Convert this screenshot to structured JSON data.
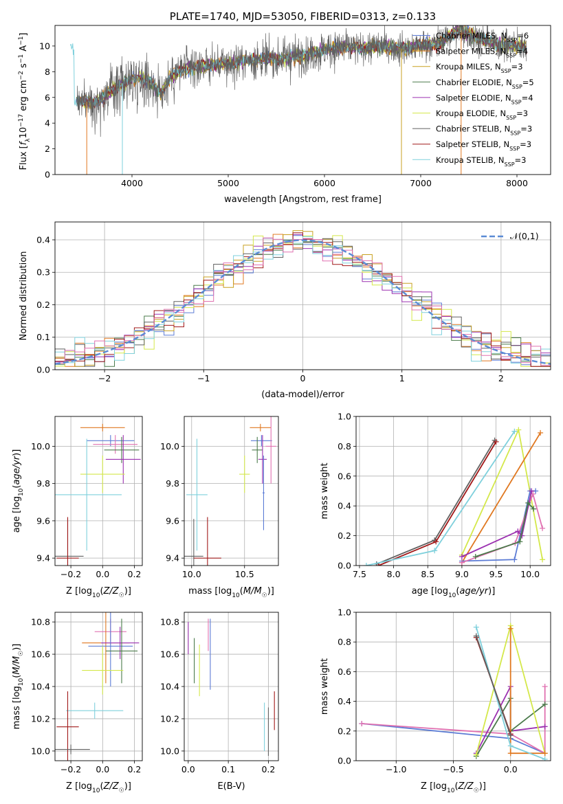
{
  "colors": {
    "Chabrier MILES": "#5b7bd5",
    "Salpeter MILES": "#e07820",
    "Kroupa MILES": "#c8a020",
    "Chabrier ELODIE": "#4a7a4a",
    "Salpeter ELODIE": "#9b30b0",
    "Kroupa ELODIE": "#d4e84a",
    "Chabrier STELIB": "#606060",
    "Salpeter STELIB": "#a01818",
    "Kroupa STELIB": "#7ed0dc",
    "pink": "#e070b0",
    "normal_curve": "#5b8bd5",
    "grid": "#b0b0b0"
  },
  "chart_data": [
    {
      "type": "line",
      "title": "PLATE=1740, MJD=53050, FIBERID=0313, z=0.133",
      "xlabel": "wavelength [Angstrom, rest frame]",
      "ylabel": "Flux [f_λ 10^-17 erg cm^-2 s^-1 A^-1]",
      "xlim": [
        3200,
        8350
      ],
      "ylim": [
        0,
        11.6
      ],
      "xticks": [
        4000,
        5000,
        6000,
        7000,
        8000
      ],
      "yticks": [
        0,
        2,
        4,
        6,
        8,
        10
      ],
      "grid": false,
      "legend_position": "top-right",
      "legend": [
        {
          "model": "Chabrier MILES",
          "nssp": "6"
        },
        {
          "model": "Salpeter MILES",
          "nssp": "4"
        },
        {
          "model": "Kroupa MILES",
          "nssp": "3"
        },
        {
          "model": "Chabrier ELODIE",
          "nssp": "5"
        },
        {
          "model": "Salpeter ELODIE",
          "nssp": "4"
        },
        {
          "model": "Kroupa ELODIE",
          "nssp": "3"
        },
        {
          "model": "Chabrier STELIB",
          "nssp": "3"
        },
        {
          "model": "Salpeter STELIB",
          "nssp": "3"
        },
        {
          "model": "Kroupa STELIB",
          "nssp": "3"
        }
      ],
      "continuum": {
        "x": [
          3400,
          3600,
          3700,
          3800,
          3900,
          4000,
          4100,
          4200,
          4300,
          4400,
          4500,
          4600,
          4800,
          5000,
          5200,
          5500,
          5800,
          6000,
          6200,
          6400,
          6600,
          6800,
          7000,
          7200,
          7400,
          7600,
          7800,
          8000,
          8100
        ],
        "y": [
          5.8,
          5.6,
          6.0,
          6.6,
          7.1,
          7.4,
          7.6,
          7.2,
          6.3,
          7.6,
          8.1,
          8.3,
          8.5,
          8.6,
          8.9,
          9.0,
          9.3,
          9.7,
          9.9,
          9.8,
          10.0,
          9.8,
          10.0,
          10.2,
          11.3,
          10.6,
          10.1,
          10.0,
          9.9
        ]
      }
    },
    {
      "type": "histogram",
      "xlabel": "(data-model)/error",
      "ylabel": "Normed distribution",
      "xlim": [
        -2.5,
        2.5
      ],
      "ylim": [
        0,
        0.455
      ],
      "xticks": [
        -2,
        -1,
        0,
        1,
        2
      ],
      "yticks": [
        0.0,
        0.1,
        0.2,
        0.3,
        0.4
      ],
      "grid": true,
      "legend": [
        "𝒩(0,1)"
      ],
      "legend_position": "top-right",
      "bin_width": 0.1,
      "series_note": "nine step-histograms, one per model, scattered around a unit normal"
    },
    {
      "type": "errorbar",
      "xlabel": "Z [log10(Z/Z☉)]",
      "ylabel": "age [log10(age/yr)]",
      "xlim": [
        -0.3,
        0.25
      ],
      "ylim": [
        9.36,
        10.16
      ],
      "xticks": [
        -0.2,
        0.0,
        0.2
      ],
      "yticks": [
        9.4,
        9.6,
        9.8,
        10.0
      ],
      "points": [
        {
          "model": "Salpeter MILES",
          "x": 0.0,
          "y": 10.1,
          "xerr": 0.14,
          "yerr": 0.02
        },
        {
          "model": "Chabrier MILES",
          "x": 0.05,
          "y": 10.03,
          "xerr": 0.15,
          "yerr": 0.03
        },
        {
          "model": "pink",
          "x": 0.08,
          "y": 10.01,
          "xerr": 0.14,
          "yerr": 0.05
        },
        {
          "model": "Chabrier ELODIE",
          "x": 0.12,
          "y": 9.98,
          "xerr": 0.11,
          "yerr": 0.07
        },
        {
          "model": "Salpeter ELODIE",
          "x": 0.13,
          "y": 9.93,
          "xerr": 0.11,
          "yerr": 0.13
        },
        {
          "model": "Kroupa ELODIE",
          "x": 0.0,
          "y": 9.85,
          "xerr": 0.14,
          "yerr": 0.1
        },
        {
          "model": "Kroupa STELIB",
          "x": -0.1,
          "y": 9.74,
          "xerr": 0.22,
          "yerr": 0.3
        },
        {
          "model": "Chabrier STELIB",
          "x": -0.22,
          "y": 9.41,
          "xerr": 0.1,
          "yerr": 0.2
        },
        {
          "model": "Salpeter STELIB",
          "x": -0.22,
          "y": 9.4,
          "xerr": 0.07,
          "yerr": 0.22
        }
      ]
    },
    {
      "type": "errorbar",
      "xlabel": "mass [log10(M/M☉)]",
      "ylabel": "",
      "xlim": [
        9.93,
        10.82
      ],
      "ylim": [
        9.36,
        10.16
      ],
      "xticks": [
        10.0,
        10.5
      ],
      "yticks": [
        9.4,
        9.6,
        9.8,
        10.0
      ],
      "points": [
        {
          "model": "Salpeter MILES",
          "x": 10.65,
          "y": 10.1,
          "xerr": 0.1,
          "yerr": 0.02
        },
        {
          "model": "Chabrier MILES",
          "x": 10.66,
          "y": 10.03,
          "xerr": 0.1,
          "yerr": 0.03
        },
        {
          "model": "Chabrier ELODIE",
          "x": 10.62,
          "y": 9.98,
          "xerr": 0.05,
          "yerr": 0.07
        },
        {
          "model": "pink",
          "x": 10.75,
          "y": 10.0,
          "xerr": 0.05,
          "yerr": 0.2
        },
        {
          "model": "Salpeter ELODIE",
          "x": 10.67,
          "y": 9.93,
          "xerr": 0.04,
          "yerr": 0.13
        },
        {
          "model": "Kroupa ELODIE",
          "x": 10.5,
          "y": 9.85,
          "xerr": 0.05,
          "yerr": 0.1
        },
        {
          "model": "Chabrier MILES",
          "x": 10.68,
          "y": 9.75,
          "xerr": 0.01,
          "yerr": 0.2
        },
        {
          "model": "Kroupa STELIB",
          "x": 10.05,
          "y": 9.74,
          "xerr": 0.1,
          "yerr": 0.3
        },
        {
          "model": "Chabrier STELIB",
          "x": 10.02,
          "y": 9.41,
          "xerr": 0.09,
          "yerr": 0.2
        },
        {
          "model": "Salpeter STELIB",
          "x": 10.15,
          "y": 9.4,
          "xerr": 0.13,
          "yerr": 0.22
        }
      ]
    },
    {
      "type": "line",
      "xlabel": "age [log10(age/yr)]",
      "ylabel": "mass weight",
      "xlim": [
        7.45,
        10.3
      ],
      "ylim": [
        0,
        1.0
      ],
      "xticks": [
        7.5,
        8.0,
        8.5,
        9.0,
        9.5,
        10.0
      ],
      "yticks": [
        0.0,
        0.2,
        0.4,
        0.6,
        0.8,
        1.0
      ],
      "grid": true,
      "series": [
        {
          "model": "Chabrier STELIB",
          "x": [
            7.75,
            8.6,
            9.48
          ],
          "y": [
            0.01,
            0.17,
            0.84
          ]
        },
        {
          "model": "Salpeter STELIB",
          "x": [
            7.78,
            8.62,
            9.5
          ],
          "y": [
            0.0,
            0.16,
            0.83
          ]
        },
        {
          "model": "Kroupa STELIB",
          "x": [
            7.6,
            8.6,
            9.77
          ],
          "y": [
            0.0,
            0.1,
            0.9
          ]
        },
        {
          "model": "Kroupa ELODIE",
          "x": [
            9.0,
            9.83,
            10.18
          ],
          "y": [
            0.07,
            0.91,
            0.04
          ]
        },
        {
          "model": "Salpeter MILES",
          "x": [
            9.0,
            10.15
          ],
          "y": [
            0.02,
            0.89
          ]
        },
        {
          "model": "Chabrier MILES",
          "x": [
            9.0,
            9.77,
            10.0,
            10.08
          ],
          "y": [
            0.03,
            0.04,
            0.5,
            0.5
          ]
        },
        {
          "model": "pink",
          "x": [
            9.0,
            9.78,
            10.04,
            10.18
          ],
          "y": [
            0.02,
            0.15,
            0.48,
            0.25
          ]
        },
        {
          "model": "Salpeter ELODIE",
          "x": [
            9.0,
            9.82,
            9.88,
            10.02
          ],
          "y": [
            0.06,
            0.23,
            0.2,
            0.5
          ]
        },
        {
          "model": "Chabrier ELODIE",
          "x": [
            9.2,
            9.85,
            9.97,
            10.05
          ],
          "y": [
            0.06,
            0.16,
            0.42,
            0.38
          ]
        }
      ]
    },
    {
      "type": "errorbar",
      "xlabel": "Z [log10(Z/Z☉)]",
      "ylabel": "mass [log10(M/M☉)]",
      "xlim": [
        -0.3,
        0.25
      ],
      "ylim": [
        9.94,
        10.86
      ],
      "xticks": [
        -0.2,
        0.0,
        0.2
      ],
      "yticks": [
        10.0,
        10.2,
        10.4,
        10.6,
        10.8
      ],
      "points": [
        {
          "model": "pink",
          "x": 0.05,
          "y": 10.74,
          "xerr": 0.1,
          "yerr": 0.08
        },
        {
          "model": "Salpeter MILES",
          "x": 0.02,
          "y": 10.67,
          "xerr": 0.15,
          "yerr": 0.25
        },
        {
          "model": "Salpeter ELODIE",
          "x": 0.11,
          "y": 10.67,
          "xerr": 0.12,
          "yerr": 0.1
        },
        {
          "model": "Chabrier MILES",
          "x": 0.05,
          "y": 10.65,
          "xerr": 0.14,
          "yerr": 0.25
        },
        {
          "model": "Chabrier ELODIE",
          "x": 0.12,
          "y": 10.62,
          "xerr": 0.1,
          "yerr": 0.2
        },
        {
          "model": "Kroupa ELODIE",
          "x": 0.0,
          "y": 10.5,
          "xerr": 0.13,
          "yerr": 0.15
        },
        {
          "model": "Kroupa STELIB",
          "x": -0.05,
          "y": 10.25,
          "xerr": 0.18,
          "yerr": 0.05
        },
        {
          "model": "Salpeter STELIB",
          "x": -0.22,
          "y": 10.15,
          "xerr": 0.07,
          "yerr": 0.22
        },
        {
          "model": "Chabrier STELIB",
          "x": -0.2,
          "y": 10.01,
          "xerr": 0.12,
          "yerr": 0.03
        }
      ]
    },
    {
      "type": "errorbar",
      "xlabel": "E(B-V)",
      "ylabel": "",
      "xlim": [
        -0.01,
        0.225
      ],
      "ylim": [
        9.94,
        10.86
      ],
      "xticks": [
        0.0,
        0.1,
        0.2
      ],
      "yticks": [
        10.0,
        10.2,
        10.4,
        10.6,
        10.8
      ],
      "points": [
        {
          "model": "Salpeter ELODIE",
          "x": 0.0,
          "y": 10.7,
          "xerr": 0.0,
          "yerr": 0.1
        },
        {
          "model": "Chabrier ELODIE",
          "x": 0.015,
          "y": 10.56,
          "xerr": 0.0,
          "yerr": 0.14
        },
        {
          "model": "Kroupa ELODIE",
          "x": 0.028,
          "y": 10.5,
          "xerr": 0.0,
          "yerr": 0.16
        },
        {
          "model": "Chabrier MILES",
          "x": 0.055,
          "y": 10.6,
          "xerr": 0.0,
          "yerr": 0.22
        },
        {
          "model": "pink",
          "x": 0.05,
          "y": 10.72,
          "xerr": 0.0,
          "yerr": 0.1
        },
        {
          "model": "Kroupa STELIB",
          "x": 0.19,
          "y": 10.15,
          "xerr": 0.0,
          "yerr": 0.15
        },
        {
          "model": "Chabrier STELIB",
          "x": 0.2,
          "y": 10.12,
          "xerr": 0.0,
          "yerr": 0.15
        },
        {
          "model": "Salpeter STELIB",
          "x": 0.215,
          "y": 10.25,
          "xerr": 0.0,
          "yerr": 0.12
        }
      ]
    },
    {
      "type": "line",
      "xlabel": "Z [log10(Z/Z☉)]",
      "ylabel": "mass weight",
      "xlim": [
        -1.35,
        0.35
      ],
      "ylim": [
        0,
        1.0
      ],
      "xticks": [
        -1.0,
        -0.5,
        0.0
      ],
      "yticks": [
        0.0,
        0.2,
        0.4,
        0.6,
        0.8,
        1.0
      ],
      "grid": true,
      "series": [
        {
          "model": "Chabrier MILES",
          "x": [
            -1.3,
            0.0,
            0.3
          ],
          "y": [
            0.25,
            0.15,
            0.05
          ]
        },
        {
          "model": "pink",
          "x": [
            -1.3,
            0.0,
            0.3,
            0.3
          ],
          "y": [
            0.25,
            0.18,
            0.05,
            0.5
          ]
        },
        {
          "model": "Salpeter ELODIE",
          "x": [
            -0.3,
            0.0,
            0.0,
            0.3
          ],
          "y": [
            0.05,
            0.5,
            0.2,
            0.23
          ]
        },
        {
          "model": "Chabrier ELODIE",
          "x": [
            -0.3,
            0.0,
            0.0,
            0.3
          ],
          "y": [
            0.03,
            0.42,
            0.2,
            0.38
          ]
        },
        {
          "model": "Kroupa ELODIE",
          "x": [
            -0.3,
            0.0,
            0.3
          ],
          "y": [
            0.04,
            0.91,
            0.05
          ]
        },
        {
          "model": "Salpeter MILES",
          "x": [
            0.0,
            0.0,
            0.3
          ],
          "y": [
            0.89,
            0.05,
            0.05
          ]
        },
        {
          "model": "Kroupa STELIB",
          "x": [
            -0.3,
            0.0,
            0.3
          ],
          "y": [
            0.9,
            0.1,
            0.01
          ]
        },
        {
          "model": "Salpeter STELIB",
          "x": [
            -0.3,
            0.0
          ],
          "y": [
            0.83,
            0.18
          ]
        },
        {
          "model": "Chabrier STELIB",
          "x": [
            -0.3,
            0.0
          ],
          "y": [
            0.84,
            0.17
          ]
        }
      ]
    }
  ]
}
